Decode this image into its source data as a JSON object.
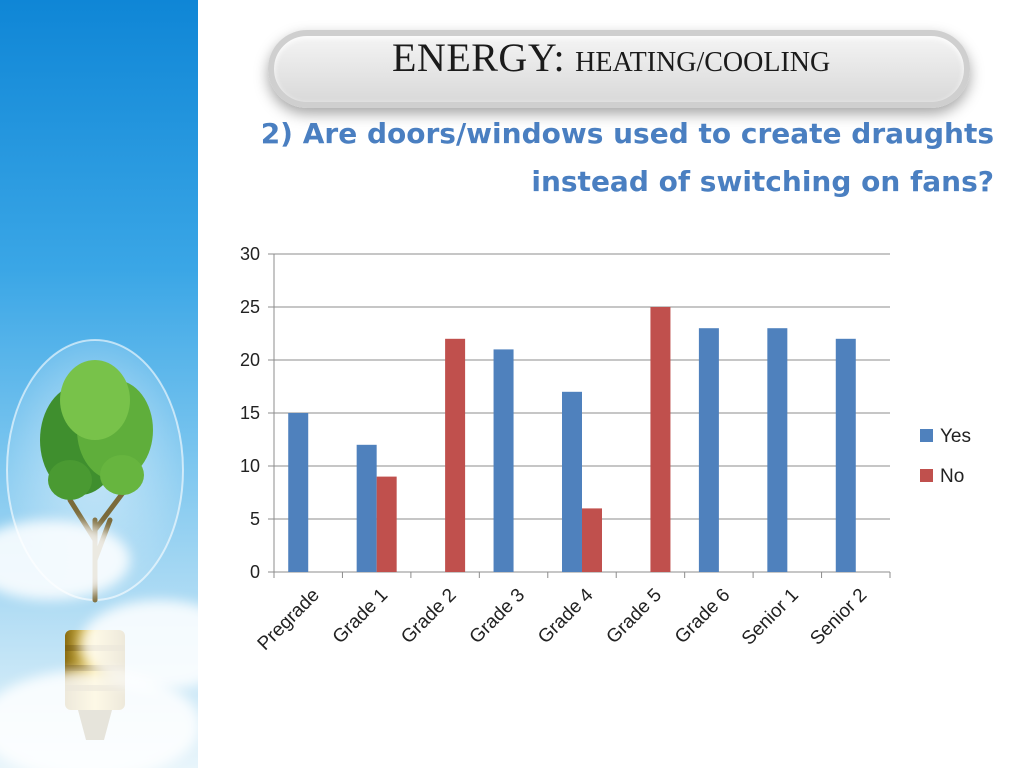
{
  "slide": {
    "title_main": "ENERGY:",
    "title_sub": "HEATING/COOLING",
    "question_line1": "2) Are doors/windows used to create draughts",
    "question_line2": "instead of switching on fans?"
  },
  "chart_data": {
    "type": "bar",
    "categories": [
      "Pregrade",
      "Grade 1",
      "Grade 2",
      "Grade 3",
      "Grade 4",
      "Grade 5",
      "Grade 6",
      "Senior 1",
      "Senior 2"
    ],
    "series": [
      {
        "name": "Yes",
        "color": "#4f81bd",
        "values": [
          15,
          12,
          null,
          21,
          17,
          null,
          23,
          23,
          22
        ]
      },
      {
        "name": "No",
        "color": "#c0504d",
        "values": [
          null,
          9,
          22,
          null,
          6,
          25,
          null,
          null,
          null
        ]
      }
    ],
    "ylim": [
      0,
      30
    ],
    "yticks": [
      0,
      5,
      10,
      15,
      20,
      25,
      30
    ],
    "grid": true,
    "legend": "right"
  }
}
